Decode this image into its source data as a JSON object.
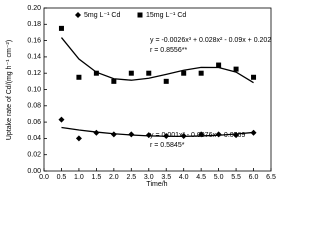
{
  "chart_data": {
    "type": "scatter",
    "x_label": "Time/h",
    "y_label": "Uptake rate of Cd/(mg h⁻¹ cm⁻²)",
    "annotations": [
      "y = -0.0026x³ + 0.028x² - 0.09x + 0.202",
      "r = 0.8556**",
      "y = 0.001x² - 0.0076x + 0.0569",
      "r = 0.5845*"
    ],
    "xlim": [
      0,
      6.5
    ],
    "xticks": [
      {
        "value": 0,
        "label": "0.0"
      },
      0.5,
      {
        "value": 1,
        "label": "1.0"
      },
      1.5,
      {
        "value": 2,
        "label": "2.0"
      },
      2.5,
      {
        "value": 3,
        "label": "3.0"
      },
      3.5,
      {
        "value": 4,
        "label": "4.0"
      },
      4.5,
      {
        "value": 5,
        "label": "5.0"
      },
      5.5,
      {
        "value": 6,
        "label": "6.0"
      },
      6.5
    ],
    "ylim": [
      0,
      0.2
    ],
    "yticks": [
      {
        "value": 0,
        "label": "0.00"
      },
      0.02,
      0.04,
      0.06,
      0.08,
      {
        "value": 0.1,
        "label": "0.10"
      },
      0.12,
      0.14,
      0.16,
      0.18,
      {
        "value": 0.2,
        "label": "0.20"
      }
    ],
    "grid": false,
    "legend": "top",
    "series": [
      {
        "name": "5mg L⁻¹ Cd",
        "marker": "diamond",
        "color": "#000000",
        "x": [
          0.5,
          1,
          1.5,
          2,
          2.5,
          3,
          3.5,
          4,
          4.5,
          5,
          5.5,
          6
        ],
        "values": [
          0.063,
          0.04,
          0.047,
          0.045,
          0.045,
          0.044,
          0.043,
          0.043,
          0.045,
          0.045,
          0.044,
          0.047
        ],
        "fit_values": [
          0.0534,
          0.0503,
          0.0478,
          0.0457,
          0.0442,
          0.0431,
          0.0426,
          0.0425,
          0.043,
          0.0439,
          0.0454,
          0.0473
        ]
      },
      {
        "name": "15mg L⁻¹ Cd",
        "marker": "square",
        "color": "#000000",
        "x": [
          0.5,
          1,
          1.5,
          2,
          2.5,
          3,
          3.5,
          4,
          4.5,
          5,
          5.5,
          6
        ],
        "values": [
          0.175,
          0.115,
          0.12,
          0.11,
          0.12,
          0.12,
          0.11,
          0.12,
          0.12,
          0.13,
          0.125,
          0.115
        ],
        "fit_values": [
          0.1637,
          0.1374,
          0.1212,
          0.1132,
          0.1114,
          0.1138,
          0.1185,
          0.1236,
          0.1271,
          0.127,
          0.1214,
          0.1084
        ]
      }
    ]
  }
}
